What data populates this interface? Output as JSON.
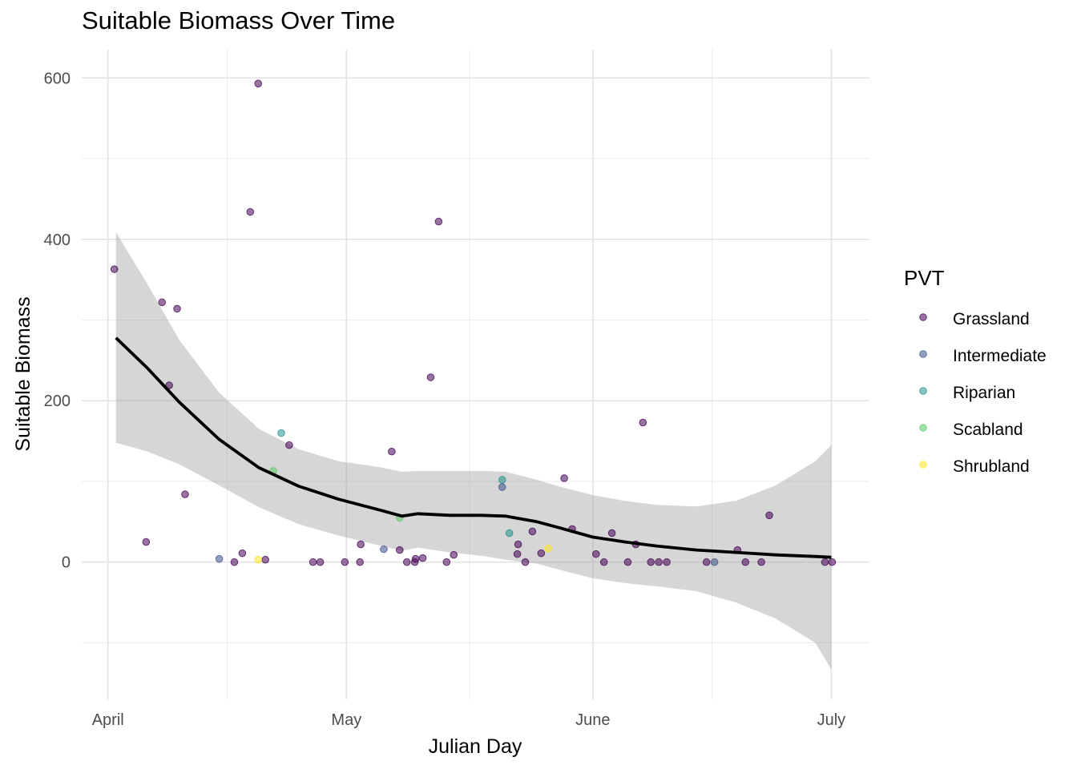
{
  "chart_data": {
    "type": "scatter",
    "title": "Suitable Biomass Over Time",
    "xlabel": "Julian Day",
    "ylabel": "Suitable Biomass",
    "x_ticks": [
      {
        "label": "April",
        "value": 91
      },
      {
        "label": "May",
        "value": 121
      },
      {
        "label": "June",
        "value": 152
      },
      {
        "label": "July",
        "value": 182
      }
    ],
    "x_minor_ticks": [
      106,
      136.5,
      167
    ],
    "y_ticks": [
      0,
      200,
      400,
      600
    ],
    "y_minor_ticks": [
      -100,
      100,
      300,
      500
    ],
    "xlim": [
      87.7,
      186.8
    ],
    "ylim": [
      -170,
      635
    ],
    "grid": true,
    "legend": {
      "title": "PVT",
      "position": "right",
      "entries": [
        {
          "name": "Grassland",
          "color": "#440154"
        },
        {
          "name": "Intermediate",
          "color": "#3B528B"
        },
        {
          "name": "Riparian",
          "color": "#21908C"
        },
        {
          "name": "Scabland",
          "color": "#5DC863"
        },
        {
          "name": "Shrubland",
          "color": "#FDE725"
        }
      ]
    },
    "series": [
      {
        "name": "Grassland",
        "points": [
          [
            91.8,
            363
          ],
          [
            95.8,
            25
          ],
          [
            97.8,
            322
          ],
          [
            98.7,
            219
          ],
          [
            99.7,
            314
          ],
          [
            100.7,
            84
          ],
          [
            106.9,
            0
          ],
          [
            107.9,
            11
          ],
          [
            108.9,
            434
          ],
          [
            109.9,
            593
          ],
          [
            110.8,
            3
          ],
          [
            113.8,
            145
          ],
          [
            116.8,
            0
          ],
          [
            117.7,
            0
          ],
          [
            120.8,
            0
          ],
          [
            122.7,
            0
          ],
          [
            122.8,
            22
          ],
          [
            126.7,
            137
          ],
          [
            127.7,
            15
          ],
          [
            128.6,
            0
          ],
          [
            129.6,
            0
          ],
          [
            129.7,
            4
          ],
          [
            130.6,
            5
          ],
          [
            131.6,
            229
          ],
          [
            132.6,
            422
          ],
          [
            133.6,
            0
          ],
          [
            134.5,
            9
          ],
          [
            142.5,
            10
          ],
          [
            142.6,
            22
          ],
          [
            143.5,
            0
          ],
          [
            144.4,
            38
          ],
          [
            145.5,
            11
          ],
          [
            148.4,
            104
          ],
          [
            149.4,
            41
          ],
          [
            152.4,
            10
          ],
          [
            153.4,
            0
          ],
          [
            154.4,
            36
          ],
          [
            156.4,
            0
          ],
          [
            157.4,
            22
          ],
          [
            158.3,
            173
          ],
          [
            159.3,
            0
          ],
          [
            160.3,
            0
          ],
          [
            161.3,
            0
          ],
          [
            166.3,
            0
          ],
          [
            170.2,
            15
          ],
          [
            171.2,
            0
          ],
          [
            173.2,
            0
          ],
          [
            174.2,
            58
          ],
          [
            181.2,
            0
          ],
          [
            182.1,
            0
          ]
        ]
      },
      {
        "name": "Intermediate",
        "points": [
          [
            105.0,
            4
          ],
          [
            125.7,
            16
          ],
          [
            140.6,
            93
          ],
          [
            167.3,
            0
          ]
        ]
      },
      {
        "name": "Riparian",
        "points": [
          [
            112.8,
            160
          ],
          [
            140.6,
            102
          ],
          [
            141.5,
            36
          ]
        ]
      },
      {
        "name": "Scabland",
        "points": [
          [
            111.8,
            113
          ],
          [
            127.7,
            55
          ]
        ]
      },
      {
        "name": "Shrubland",
        "points": [
          [
            109.9,
            3
          ],
          [
            146.4,
            17
          ]
        ]
      }
    ],
    "smooth": {
      "color": "#000000",
      "band_color": "#999999",
      "x": [
        92,
        96,
        100,
        105,
        110,
        115,
        120,
        125,
        128,
        130,
        134,
        138,
        141,
        145,
        148,
        152,
        156,
        160,
        165,
        170,
        175,
        180,
        182
      ],
      "y": [
        278,
        240,
        198,
        152,
        117,
        94,
        78,
        65,
        57,
        60,
        58,
        58,
        57,
        50,
        42,
        31,
        25,
        20,
        15,
        12,
        9,
        7,
        6
      ],
      "lower": [
        148,
        137,
        121,
        95,
        68,
        47,
        33,
        21,
        14,
        18,
        12,
        8,
        3,
        -2,
        -10,
        -20,
        -26,
        -30,
        -36,
        -50,
        -70,
        -100,
        -133
      ],
      "upper": [
        409,
        344,
        275,
        210,
        165,
        140,
        125,
        118,
        112,
        113,
        113,
        113,
        112,
        102,
        93,
        83,
        76,
        71,
        69,
        76,
        95,
        125,
        145
      ]
    }
  }
}
